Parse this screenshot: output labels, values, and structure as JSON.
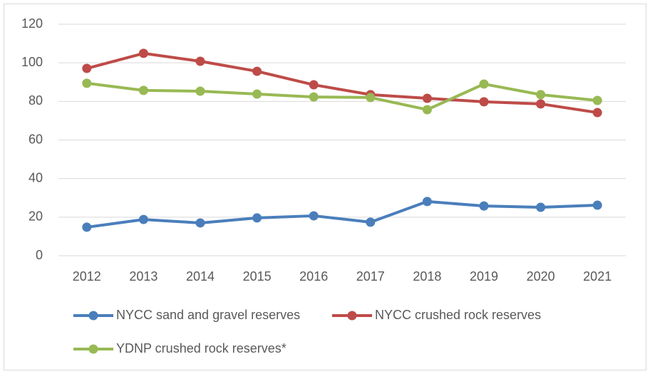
{
  "chart_data": {
    "type": "line",
    "categories": [
      "2012",
      "2013",
      "2014",
      "2015",
      "2016",
      "2017",
      "2018",
      "2019",
      "2020",
      "2021"
    ],
    "series": [
      {
        "name": "NYCC sand and gravel reserves",
        "color": "#4a7ebb",
        "values": [
          14.8,
          18.8,
          17,
          19.6,
          20.7,
          17.4,
          28.1,
          25.8,
          25.1,
          26.2
        ]
      },
      {
        "name": "NYCC crushed rock reserves",
        "color": "#be4b48",
        "values": [
          97.1,
          104.9,
          100.8,
          95.6,
          88.6,
          83.5,
          81.6,
          79.8,
          78.7,
          74.2
        ]
      },
      {
        "name": "YDNP crushed rock reserves*",
        "color": "#98b954",
        "values": [
          89.4,
          85.7,
          85.3,
          83.8,
          82.3,
          82,
          75.7,
          89,
          83.5,
          80.5
        ]
      }
    ],
    "ylim": [
      0,
      120
    ],
    "yticks": [
      0,
      20,
      40,
      60,
      80,
      100,
      120
    ],
    "grid": true
  }
}
